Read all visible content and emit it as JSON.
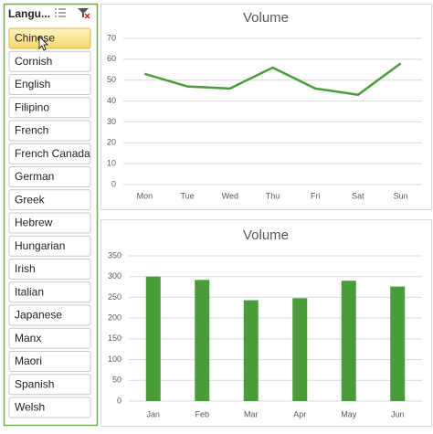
{
  "slicer": {
    "title": "Langu...",
    "items": [
      {
        "label": "Chinese",
        "selected": true
      },
      {
        "label": "Cornish"
      },
      {
        "label": "English"
      },
      {
        "label": "Filipino"
      },
      {
        "label": "French"
      },
      {
        "label": "French Canada"
      },
      {
        "label": "German"
      },
      {
        "label": "Greek"
      },
      {
        "label": "Hebrew"
      },
      {
        "label": "Hungarian"
      },
      {
        "label": "Irish"
      },
      {
        "label": "Italian"
      },
      {
        "label": "Japanese"
      },
      {
        "label": "Manx"
      },
      {
        "label": "Maori"
      },
      {
        "label": "Spanish"
      },
      {
        "label": "Welsh"
      }
    ]
  },
  "chart_data": [
    {
      "type": "line",
      "title": "Volume",
      "categories": [
        "Mon",
        "Tue",
        "Wed",
        "Thu",
        "Fri",
        "Sat",
        "Sun"
      ],
      "values": [
        53,
        47,
        46,
        56,
        46,
        43,
        58
      ],
      "color": "#4a9b3a",
      "ylim": [
        0,
        70
      ],
      "yticks": [
        0,
        10,
        20,
        30,
        40,
        50,
        60,
        70
      ],
      "grid": true
    },
    {
      "type": "bar",
      "title": "Volume",
      "categories": [
        "Jan",
        "Feb",
        "Mar",
        "Apr",
        "May",
        "Jun"
      ],
      "values": [
        300,
        292,
        243,
        248,
        290,
        276
      ],
      "color": "#4a9c3b",
      "ylim": [
        0,
        350
      ],
      "yticks": [
        0,
        50,
        100,
        150,
        200,
        250,
        300,
        350
      ],
      "grid": true
    }
  ]
}
